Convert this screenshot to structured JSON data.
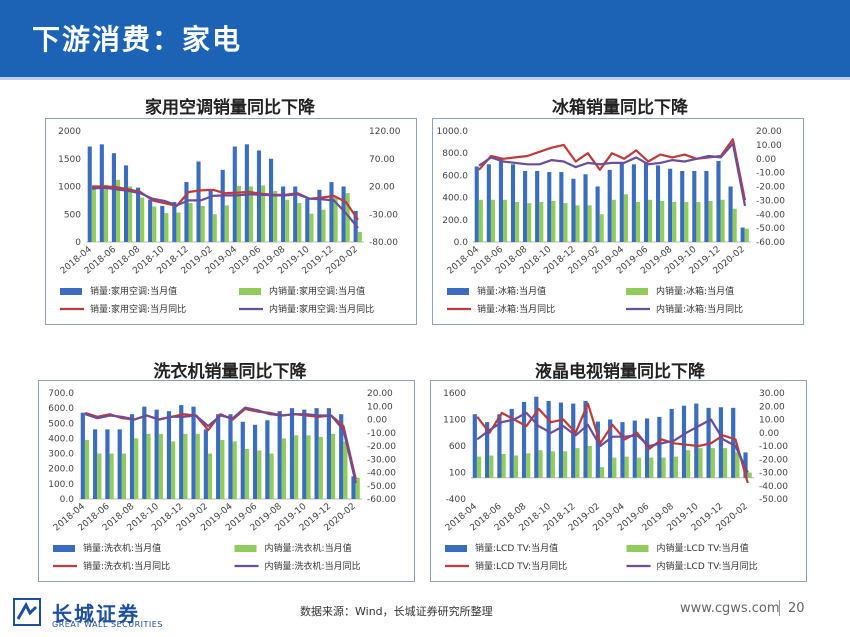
{
  "header": {
    "title": "下游消费：家电"
  },
  "footer": {
    "logo_cn": "长城证券",
    "logo_en": "GREAT WALL SECURITIES",
    "source": "数据来源：Wind，长城证券研究所整理",
    "site": "www.cgws.com",
    "page": "20"
  },
  "colors": {
    "bar1": "#3a6cc0",
    "bar2": "#8fcc5a",
    "line1": "#c0393b",
    "line2": "#6a4e9a",
    "header": "#1c63b6"
  },
  "chart_data": [
    {
      "type": "bar",
      "title": "家用空调销量同比下降",
      "categories": [
        "2018-04",
        "2018-05",
        "2018-06",
        "2018-07",
        "2018-08",
        "2018-09",
        "2018-10",
        "2018-11",
        "2018-12",
        "2019-01",
        "2019-02",
        "2019-03",
        "2019-04",
        "2019-05",
        "2019-06",
        "2019-07",
        "2019-08",
        "2019-09",
        "2019-10",
        "2019-11",
        "2019-12",
        "2020-01",
        "2020-02"
      ],
      "xticks": [
        "2018-04",
        "2018-06",
        "2018-08",
        "2018-10",
        "2018-12",
        "2019-02",
        "2019-04",
        "2019-06",
        "2019-08",
        "2019-10",
        "2019-12",
        "2020-02"
      ],
      "y_left": {
        "min": 0,
        "max": 2000,
        "ticks": [
          "0",
          "500",
          "1000",
          "1500",
          "2000"
        ]
      },
      "y_right": {
        "min": -80,
        "max": 120,
        "ticks": [
          "-80.00",
          "-30.00",
          "20.00",
          "70.00",
          "120.00"
        ]
      },
      "series": [
        {
          "name": "销量:家用空调:当月值",
          "kind": "bar",
          "axis": "left",
          "values": [
            1720,
            1760,
            1600,
            1380,
            980,
            760,
            650,
            720,
            1080,
            1450,
            950,
            1300,
            1720,
            1760,
            1650,
            1500,
            1000,
            1000,
            780,
            940,
            1080,
            1000,
            560
          ]
        },
        {
          "name": "内销量:家用空调:当月值",
          "kind": "bar",
          "axis": "left",
          "values": [
            990,
            1030,
            1120,
            1000,
            800,
            640,
            520,
            530,
            700,
            650,
            500,
            660,
            1010,
            1000,
            1020,
            920,
            760,
            700,
            510,
            580,
            800,
            880,
            180
          ]
        },
        {
          "name": "销量:家用空调:当月同比",
          "kind": "line",
          "axis": "right",
          "values": [
            20,
            20,
            19,
            15,
            10,
            -5,
            -10,
            -15,
            10,
            13,
            14,
            8,
            9,
            10,
            7,
            5,
            5,
            8,
            -2,
            0,
            3,
            -8,
            -40
          ]
        },
        {
          "name": "内销量:家用空调:当月同比",
          "kind": "line",
          "axis": "right",
          "values": [
            16,
            18,
            15,
            12,
            8,
            -2,
            -6,
            -14,
            -5,
            -5,
            3,
            4,
            4,
            6,
            5,
            4,
            4,
            6,
            -2,
            -3,
            -5,
            -28,
            -55
          ]
        }
      ]
    },
    {
      "type": "bar",
      "title": "冰箱销量同比下降",
      "categories": [
        "2018-04",
        "2018-05",
        "2018-06",
        "2018-07",
        "2018-08",
        "2018-09",
        "2018-10",
        "2018-11",
        "2018-12",
        "2019-01",
        "2019-02",
        "2019-03",
        "2019-04",
        "2019-05",
        "2019-06",
        "2019-07",
        "2019-08",
        "2019-09",
        "2019-10",
        "2019-11",
        "2019-12",
        "2020-01",
        "2020-02"
      ],
      "xticks": [
        "2018-04",
        "2018-06",
        "2018-08",
        "2018-10",
        "2018-12",
        "2019-02",
        "2019-04",
        "2019-06",
        "2019-08",
        "2019-10",
        "2019-12",
        "2020-02"
      ],
      "y_left": {
        "min": 0,
        "max": 1000,
        "ticks": [
          "0.0",
          "200.0",
          "400.0",
          "600.0",
          "800.0",
          "1000.0"
        ]
      },
      "y_right": {
        "min": -60,
        "max": 20,
        "ticks": [
          "-60.00",
          "-50.00",
          "-40.00",
          "-30.00",
          "-20.00",
          "-10.00",
          "0.00",
          "10.00",
          "20.00"
        ]
      },
      "series": [
        {
          "name": "销量:冰箱:当月值",
          "kind": "bar",
          "axis": "left",
          "values": [
            680,
            700,
            760,
            700,
            640,
            640,
            630,
            630,
            570,
            610,
            500,
            650,
            720,
            700,
            720,
            690,
            660,
            640,
            640,
            640,
            730,
            500,
            130
          ]
        },
        {
          "name": "内销量:冰箱:当月值",
          "kind": "bar",
          "axis": "left",
          "values": [
            380,
            380,
            380,
            360,
            350,
            360,
            370,
            350,
            330,
            330,
            250,
            380,
            430,
            360,
            380,
            370,
            360,
            360,
            360,
            370,
            380,
            300,
            120
          ]
        },
        {
          "name": "销量:冰箱:当月同比",
          "kind": "line",
          "axis": "right",
          "values": [
            -8,
            2,
            0,
            1,
            2,
            5,
            8,
            10,
            -2,
            4,
            -8,
            4,
            0,
            6,
            -2,
            3,
            1,
            3,
            0,
            1,
            2,
            14,
            -30
          ]
        },
        {
          "name": "内销量:冰箱:当月同比",
          "kind": "line",
          "axis": "right",
          "values": [
            -5,
            1,
            -2,
            -3,
            -4,
            -4,
            -1,
            -2,
            -6,
            -3,
            -4,
            -3,
            -3,
            1,
            -4,
            -3,
            -1,
            -2,
            0,
            2,
            1,
            11,
            -34
          ]
        }
      ]
    },
    {
      "type": "bar",
      "title": "洗衣机销量同比下降",
      "categories": [
        "2018-04",
        "2018-05",
        "2018-06",
        "2018-07",
        "2018-08",
        "2018-09",
        "2018-10",
        "2018-11",
        "2018-12",
        "2019-01",
        "2019-02",
        "2019-03",
        "2019-04",
        "2019-05",
        "2019-06",
        "2019-07",
        "2019-08",
        "2019-09",
        "2019-10",
        "2019-11",
        "2019-12",
        "2020-01",
        "2020-02"
      ],
      "xticks": [
        "2018-04",
        "2018-06",
        "2018-08",
        "2018-10",
        "2018-12",
        "2019-02",
        "2019-04",
        "2019-06",
        "2019-08",
        "2019-10",
        "2019-12",
        "2020-02"
      ],
      "y_left": {
        "min": 0,
        "max": 700,
        "ticks": [
          "0.0",
          "100.0",
          "200.0",
          "300.0",
          "400.0",
          "500.0",
          "600.0",
          "700.0"
        ]
      },
      "y_right": {
        "min": -60,
        "max": 20,
        "ticks": [
          "-60.00",
          "-50.00",
          "-40.00",
          "-30.00",
          "-20.00",
          "-10.00",
          "0.00",
          "10.00",
          "20.00"
        ]
      },
      "series": [
        {
          "name": "销量:洗衣机:当月值",
          "kind": "bar",
          "axis": "left",
          "values": [
            570,
            460,
            460,
            460,
            560,
            610,
            590,
            580,
            620,
            610,
            460,
            560,
            560,
            510,
            490,
            520,
            580,
            600,
            590,
            600,
            600,
            560,
            150
          ]
        },
        {
          "name": "内销量:洗衣机:当月值",
          "kind": "bar",
          "axis": "left",
          "values": [
            390,
            300,
            300,
            300,
            400,
            430,
            430,
            380,
            430,
            430,
            300,
            390,
            380,
            330,
            320,
            300,
            400,
            420,
            420,
            410,
            430,
            380,
            140
          ]
        },
        {
          "name": "销量:洗衣机:当月同比",
          "kind": "line",
          "axis": "right",
          "values": [
            5,
            2,
            4,
            1,
            0,
            3,
            0,
            2,
            4,
            3,
            -8,
            4,
            0,
            8,
            6,
            5,
            3,
            4,
            3,
            2,
            3,
            -5,
            -45
          ]
        },
        {
          "name": "内销量:洗衣机:当月同比",
          "kind": "line",
          "axis": "right",
          "values": [
            4,
            1,
            3,
            2,
            0,
            3,
            0,
            2,
            2,
            3,
            -5,
            3,
            1,
            9,
            7,
            4,
            3,
            4,
            4,
            3,
            3,
            -8,
            -48
          ]
        }
      ]
    },
    {
      "type": "bar",
      "title": "液晶电视销量同比下降",
      "categories": [
        "2018-04",
        "2018-05",
        "2018-06",
        "2018-07",
        "2018-08",
        "2018-09",
        "2018-10",
        "2018-11",
        "2018-12",
        "2019-01",
        "2019-02",
        "2019-03",
        "2019-04",
        "2019-05",
        "2019-06",
        "2019-07",
        "2019-08",
        "2019-09",
        "2019-10",
        "2019-11",
        "2019-12",
        "2020-01",
        "2020-02"
      ],
      "xticks": [
        "2018-04",
        "2018-06",
        "2018-08",
        "2018-10",
        "2018-12",
        "2019-02",
        "2019-04",
        "2019-06",
        "2019-08",
        "2019-10",
        "2019-12",
        "2020-02"
      ],
      "y_left": {
        "min": -400,
        "max": 1600,
        "ticks": [
          "-400",
          "100",
          "600",
          "1100",
          "1600"
        ]
      },
      "y_right": {
        "min": -50,
        "max": 30,
        "ticks": [
          "-50.00",
          "-40.00",
          "-30.00",
          "-20.00",
          "-10.00",
          "0.00",
          "10.00",
          "20.00",
          "30.00"
        ]
      },
      "series": [
        {
          "name": "销量:LCD TV:当月值",
          "kind": "bar",
          "axis": "left",
          "values": [
            1200,
            1050,
            1200,
            1300,
            1430,
            1530,
            1450,
            1420,
            1400,
            1450,
            1060,
            1100,
            1050,
            1080,
            1120,
            1150,
            1300,
            1360,
            1400,
            1320,
            1330,
            1320,
            480
          ]
        },
        {
          "name": "内销量:LCD TV:当月值",
          "kind": "bar",
          "axis": "left",
          "values": [
            400,
            420,
            450,
            420,
            460,
            520,
            500,
            500,
            560,
            600,
            200,
            380,
            400,
            380,
            380,
            380,
            400,
            520,
            560,
            560,
            560,
            480,
            100
          ]
        },
        {
          "name": "销量:LCD TV:当月同比",
          "kind": "line",
          "axis": "right",
          "values": [
            12,
            0,
            15,
            10,
            5,
            18,
            8,
            10,
            0,
            22,
            -8,
            6,
            -5,
            0,
            -12,
            -5,
            -8,
            -9,
            -10,
            -8,
            -2,
            -5,
            -38
          ]
        },
        {
          "name": "内销量:LCD TV:当月同比",
          "kind": "line",
          "axis": "right",
          "values": [
            -5,
            2,
            8,
            10,
            15,
            5,
            0,
            5,
            -2,
            6,
            -10,
            -3,
            -3,
            -2,
            -10,
            -8,
            -6,
            0,
            5,
            10,
            -5,
            -10,
            -30
          ]
        }
      ]
    }
  ]
}
